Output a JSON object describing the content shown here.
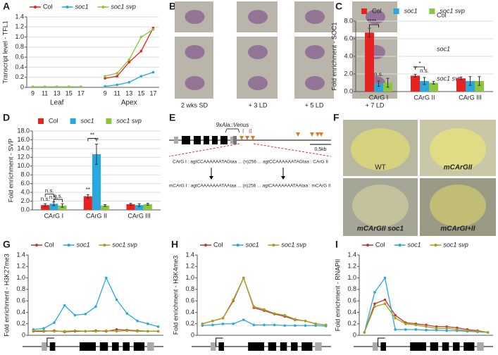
{
  "chart_data": [
    {
      "type": "line",
      "label": "A",
      "ylabel": "Transcript level - TFL1",
      "categories": [
        "9",
        "11",
        "13",
        "15",
        "17",
        null,
        "9",
        "11",
        "13",
        "15",
        "17"
      ],
      "group_labels": [
        "Leaf",
        "Apex"
      ],
      "series": [
        {
          "name": "Col",
          "color": "#e8231f",
          "values": [
            0.01,
            0.01,
            0.01,
            0.01,
            0.01,
            null,
            0.18,
            0.22,
            0.5,
            0.72,
            1.18
          ]
        },
        {
          "name": "soc1",
          "color": "#29a8e0",
          "values": [
            0.01,
            0.01,
            0.01,
            0.01,
            0.01,
            null,
            0.02,
            0.05,
            0.1,
            0.22,
            0.3
          ]
        },
        {
          "name": "soc1 svp",
          "color": "#8cc63f",
          "values": [
            0.01,
            0.01,
            0.01,
            0.01,
            0.01,
            null,
            0.22,
            0.28,
            0.55,
            1.0,
            1.15
          ]
        }
      ],
      "ylim": [
        0,
        1.4
      ],
      "yticks": [
        0,
        0.2,
        0.4,
        0.6,
        0.8,
        {
          "value": 1,
          "label": "1.0"
        },
        1.2,
        1.4
      ],
      "grid": true
    },
    {
      "type": "bar",
      "label": "C",
      "ylabel": "Fold enrichment - SOC1",
      "categories": [
        "CArG I",
        "CArG II",
        "CArG III"
      ],
      "series": [
        {
          "name": "Col",
          "color": "#e8231f",
          "values": [
            6.7,
            1.8,
            1.5
          ],
          "errors": [
            0.5,
            0.15,
            0.15
          ]
        },
        {
          "name": "soc1",
          "color": "#29a8e0",
          "values": [
            0.9,
            1.2,
            1.2
          ],
          "errors": [
            0.3,
            0.4,
            0.5
          ]
        },
        {
          "name": "soc1 svp",
          "color": "#8cc63f",
          "values": [
            1.0,
            1.0,
            1.2
          ],
          "errors": [
            0.5,
            0.15,
            0.5
          ]
        }
      ],
      "annotations": [
        "**",
        "**",
        "n.s.",
        "*",
        "**",
        "n.s."
      ],
      "ylim": [
        0,
        8
      ],
      "yticks": [
        {
          "value": 0,
          "label": "0.0"
        },
        {
          "value": 2,
          "label": "2.0"
        },
        {
          "value": 4,
          "label": "4.0"
        },
        {
          "value": 6,
          "label": "6.0"
        },
        {
          "value": 8,
          "label": "8.0"
        }
      ],
      "grid": true
    },
    {
      "type": "bar",
      "label": "D",
      "ylabel": "Fold enrichment - SVP",
      "categories": [
        "CArG I",
        "CArG II",
        "CArG III"
      ],
      "series": [
        {
          "name": "Col",
          "color": "#e8231f",
          "values": [
            1.1,
            3.1,
            1.3
          ],
          "errors": [
            0.3,
            0.4,
            0.2
          ]
        },
        {
          "name": "soc1",
          "color": "#29a8e0",
          "values": [
            1.4,
            12.7,
            1.1
          ],
          "errors": [
            0.4,
            2.3,
            0.3
          ]
        },
        {
          "name": "soc1 svp",
          "color": "#8cc63f",
          "values": [
            1.0,
            1.0,
            1.3
          ],
          "errors": [
            0.4,
            0.2,
            0.2
          ]
        }
      ],
      "annotations": [
        "n.s.",
        "n.s.",
        "n.s.",
        "n.s.",
        "**",
        "**",
        "**"
      ],
      "ylim": [
        0,
        18
      ],
      "yticks": [
        {
          "value": 0,
          "label": "0.0"
        },
        {
          "value": 2,
          "label": "2.0"
        },
        {
          "value": 4,
          "label": "4.0"
        },
        {
          "value": 6,
          "label": "6.0"
        },
        {
          "value": 8,
          "label": "8.0"
        },
        {
          "value": 10,
          "label": "10.0"
        },
        {
          "value": 12,
          "label": "12.0"
        },
        {
          "value": 14,
          "label": "14.0"
        },
        {
          "value": 16,
          "label": "16.0"
        },
        {
          "value": 18,
          "label": "18.0"
        }
      ],
      "grid": true
    },
    {
      "type": "line",
      "label": "G",
      "ylabel": "Fold enrichment - H3K27me3",
      "series": [
        {
          "name": "Col",
          "color": "#c0392b",
          "values": [
            0.07,
            0.07,
            0.08,
            0.06,
            0.07,
            0.07,
            0.08,
            0.07,
            0.1,
            0.09,
            0.08,
            0.07,
            0.07
          ]
        },
        {
          "name": "soc1",
          "color": "#29a8e0",
          "values": [
            0.1,
            0.12,
            0.22,
            0.52,
            0.35,
            0.37,
            0.5,
            1.0,
            0.62,
            0.38,
            0.25,
            0.2,
            0.15
          ]
        },
        {
          "name": "soc1 svp",
          "color": "#a5a01e",
          "values": [
            0.08,
            0.08,
            0.07,
            0.07,
            0.08,
            0.07,
            0.07,
            0.08,
            0.07,
            0.08,
            0.07,
            0.07,
            0.07
          ]
        }
      ],
      "ylim": [
        0,
        1.4
      ],
      "yticks": [
        0,
        0.2,
        0.4,
        0.6,
        0.8,
        {
          "value": 1,
          "label": "1.0"
        },
        1.2,
        1.4
      ],
      "grid": false
    },
    {
      "type": "line",
      "label": "H",
      "ylabel": "Fold enrichment - H3K4me3",
      "series": [
        {
          "name": "Col",
          "color": "#c0392b",
          "values": [
            0.2,
            0.25,
            0.3,
            0.6,
            1.0,
            0.48,
            0.43,
            0.37,
            0.33,
            0.27,
            0.25,
            0.2,
            0.18
          ]
        },
        {
          "name": "soc1",
          "color": "#29a8e0",
          "values": [
            0.17,
            0.18,
            0.2,
            0.2,
            0.27,
            0.18,
            0.18,
            0.18,
            0.17,
            0.17,
            0.17,
            0.17,
            0.16
          ]
        },
        {
          "name": "soc1 svp",
          "color": "#a5a01e",
          "values": [
            0.2,
            0.25,
            0.3,
            0.62,
            1.0,
            0.5,
            0.45,
            0.38,
            0.35,
            0.28,
            0.25,
            0.2,
            0.18
          ]
        }
      ],
      "ylim": [
        0,
        1.4
      ],
      "yticks": [
        0,
        0.2,
        0.4,
        0.6,
        0.8,
        {
          "value": 1,
          "label": "1.0"
        },
        1.2,
        1.4
      ],
      "grid": false
    },
    {
      "type": "line",
      "label": "I",
      "ylabel": "Fold enrichment - RNAPII",
      "series": [
        {
          "name": "Col",
          "color": "#c0392b",
          "values": [
            0.05,
            0.55,
            0.62,
            0.35,
            0.22,
            0.2,
            0.18,
            0.15,
            0.15,
            0.13,
            0.1,
            0.08,
            0.05
          ]
        },
        {
          "name": "soc1",
          "color": "#29a8e0",
          "values": [
            0.05,
            0.75,
            1.0,
            0.1,
            0.1,
            0.1,
            0.09,
            0.09,
            0.08,
            0.08,
            0.07,
            0.06,
            0.05
          ]
        },
        {
          "name": "soc1 svp",
          "color": "#a5a01e",
          "values": [
            0.05,
            0.5,
            0.55,
            0.3,
            0.2,
            0.18,
            0.15,
            0.12,
            0.12,
            0.1,
            0.08,
            0.07,
            0.05
          ]
        }
      ],
      "ylim": [
        0,
        1.4
      ],
      "yticks": [
        0,
        0.2,
        0.4,
        0.6,
        0.8,
        {
          "value": 1,
          "label": "1.0"
        },
        1.2,
        1.4
      ],
      "grid": false
    }
  ],
  "panel_b": {
    "label": "B",
    "row_labels": [
      "Col",
      "soc1",
      "soc1 svp"
    ],
    "col_labels": [
      "2 wks SD",
      "+ 3 LD",
      "+ 5 LD",
      "+ 7 LD"
    ]
  },
  "panel_e": {
    "label": "E",
    "construct": "9xAla::Venus",
    "sites": [
      "I",
      "II"
    ],
    "scale": "0.5kb",
    "wt_sequence": "CArG I : agtCCAAAAAATAGtaa ... (n)256 ... agtCCAAAAAATAGtaa : CArG II",
    "mut_sequence": "mCArG I : agtCAAAAAAATAAtaa ... (n)256 ... agtCAAAAAAATAAtaa : mCArG II"
  },
  "panel_f": {
    "label": "F",
    "image_labels": [
      "WT",
      "mCArGII",
      "mCArGII soc1",
      "mCArGI+II"
    ]
  }
}
